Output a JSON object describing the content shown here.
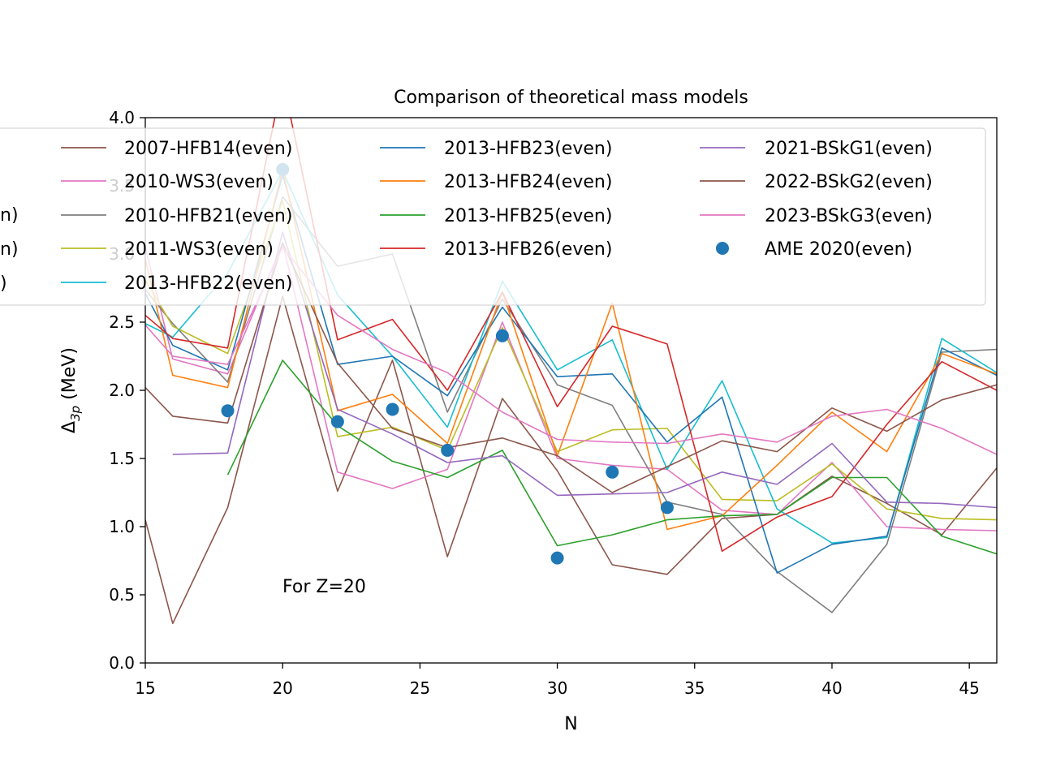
{
  "chart_data": {
    "type": "line",
    "title": "Comparison of theoretical mass models",
    "xlabel": "N",
    "ylabel_main": "Δ",
    "ylabel_sub": "3p",
    "ylabel_unit": " (MeV)",
    "annotation": "For Z=20",
    "xlim": [
      15,
      46
    ],
    "ylim": [
      0,
      4.0
    ],
    "xticks": [
      15,
      20,
      25,
      30,
      35,
      40,
      45
    ],
    "yticks": [
      "0.0",
      "0.5",
      "1.0",
      "1.5",
      "2.0",
      "2.5",
      "3.0",
      "3.5",
      "4.0"
    ],
    "grid": false,
    "legend_position": "top",
    "legend_cutoff_labels": [
      "n)",
      "n)",
      ")"
    ],
    "series": [
      {
        "name": "2007-HFB14(even)",
        "color": "#8c564b",
        "points": [
          [
            15,
            1.05
          ],
          [
            16,
            0.29
          ],
          [
            18,
            1.14
          ],
          [
            20,
            2.69
          ],
          [
            22,
            1.26
          ],
          [
            24,
            2.22
          ],
          [
            26,
            0.78
          ],
          [
            28,
            1.94
          ],
          [
            30,
            1.41
          ],
          [
            32,
            0.72
          ],
          [
            34,
            0.65
          ],
          [
            36,
            1.06
          ],
          [
            38,
            1.09
          ],
          [
            40,
            1.37
          ],
          [
            42,
            1.17
          ],
          [
            44,
            0.94
          ],
          [
            46,
            1.43
          ]
        ]
      },
      {
        "name": "2010-WS3(even)",
        "color": "#e377c2",
        "points": [
          [
            15,
            3.05
          ],
          [
            16,
            2.23
          ],
          [
            18,
            2.12
          ],
          [
            20,
            3.08
          ],
          [
            22,
            1.4
          ],
          [
            24,
            1.28
          ],
          [
            26,
            1.42
          ],
          [
            28,
            2.5
          ],
          [
            30,
            1.5
          ],
          [
            32,
            1.45
          ],
          [
            34,
            1.42
          ],
          [
            36,
            1.12
          ],
          [
            38,
            1.09
          ],
          [
            40,
            1.47
          ],
          [
            42,
            1.0
          ],
          [
            44,
            0.98
          ],
          [
            46,
            0.97
          ]
        ]
      },
      {
        "name": "2010-HFB21(even)",
        "color": "#7f7f7f",
        "points": [
          [
            15,
            2.74
          ],
          [
            16,
            2.49
          ],
          [
            18,
            2.06
          ],
          [
            20,
            3.42
          ],
          [
            22,
            2.91
          ],
          [
            24,
            3.0
          ],
          [
            26,
            1.84
          ],
          [
            28,
            2.67
          ],
          [
            30,
            2.04
          ],
          [
            32,
            1.89
          ],
          [
            34,
            1.18
          ],
          [
            36,
            1.09
          ],
          [
            38,
            0.67
          ],
          [
            40,
            0.37
          ],
          [
            42,
            0.87
          ],
          [
            44,
            2.28
          ],
          [
            46,
            2.3
          ]
        ]
      },
      {
        "name": "2011-WS3(even)",
        "color": "#bcbd22",
        "points": [
          [
            15,
            2.81
          ],
          [
            16,
            2.47
          ],
          [
            18,
            2.27
          ],
          [
            20,
            3.39
          ],
          [
            22,
            1.66
          ],
          [
            24,
            1.73
          ],
          [
            26,
            1.56
          ],
          [
            28,
            2.46
          ],
          [
            30,
            1.55
          ],
          [
            32,
            1.71
          ],
          [
            34,
            1.72
          ],
          [
            36,
            1.2
          ],
          [
            38,
            1.19
          ],
          [
            40,
            1.46
          ],
          [
            42,
            1.13
          ],
          [
            44,
            1.06
          ],
          [
            46,
            1.05
          ]
        ]
      },
      {
        "name": "2013-HFB22(even)",
        "color": "#17becf",
        "points": [
          [
            15,
            2.49
          ],
          [
            16,
            2.39
          ],
          [
            18,
            2.86
          ],
          [
            20,
            3.61
          ],
          [
            22,
            2.7
          ],
          [
            24,
            2.25
          ],
          [
            26,
            1.73
          ],
          [
            28,
            2.8
          ],
          [
            30,
            2.15
          ],
          [
            32,
            2.37
          ],
          [
            34,
            1.42
          ],
          [
            36,
            2.07
          ],
          [
            38,
            1.13
          ],
          [
            40,
            0.88
          ],
          [
            42,
            0.92
          ],
          [
            44,
            2.38
          ],
          [
            46,
            2.13
          ]
        ]
      },
      {
        "name": "2013-HFB23(even)",
        "color": "#1f77b4",
        "points": [
          [
            15,
            2.71
          ],
          [
            16,
            2.33
          ],
          [
            18,
            2.15
          ],
          [
            20,
            3.58
          ],
          [
            22,
            2.19
          ],
          [
            24,
            2.25
          ],
          [
            26,
            1.96
          ],
          [
            28,
            2.61
          ],
          [
            30,
            2.1
          ],
          [
            32,
            2.12
          ],
          [
            34,
            1.62
          ],
          [
            36,
            1.95
          ],
          [
            38,
            0.66
          ],
          [
            40,
            0.87
          ],
          [
            42,
            0.93
          ],
          [
            44,
            2.31
          ],
          [
            46,
            2.11
          ]
        ]
      },
      {
        "name": "2013-HFB24(even)",
        "color": "#ff7f0e",
        "points": [
          [
            15,
            2.96
          ],
          [
            16,
            2.11
          ],
          [
            18,
            2.02
          ],
          [
            20,
            3.62
          ],
          [
            22,
            1.85
          ],
          [
            24,
            1.97
          ],
          [
            26,
            1.61
          ],
          [
            28,
            2.72
          ],
          [
            30,
            1.52
          ],
          [
            32,
            2.64
          ],
          [
            34,
            0.98
          ],
          [
            36,
            1.08
          ],
          [
            38,
            1.45
          ],
          [
            40,
            1.84
          ],
          [
            42,
            1.55
          ],
          [
            44,
            2.27
          ],
          [
            46,
            2.12
          ]
        ]
      },
      {
        "name": "2013-HFB25(even)",
        "color": "#2ca02c",
        "points": [
          [
            18,
            1.38
          ],
          [
            20,
            2.22
          ],
          [
            22,
            1.74
          ],
          [
            24,
            1.48
          ],
          [
            26,
            1.36
          ],
          [
            28,
            1.56
          ],
          [
            30,
            0.86
          ],
          [
            32,
            0.94
          ],
          [
            34,
            1.05
          ],
          [
            36,
            1.08
          ],
          [
            38,
            1.09
          ],
          [
            40,
            1.36
          ],
          [
            42,
            1.36
          ],
          [
            44,
            0.93
          ],
          [
            46,
            0.8
          ]
        ]
      },
      {
        "name": "2013-HFB26(even)",
        "color": "#d62728",
        "points": [
          [
            15,
            2.55
          ],
          [
            16,
            2.38
          ],
          [
            18,
            2.31
          ],
          [
            20,
            4.28
          ],
          [
            22,
            2.37
          ],
          [
            24,
            2.52
          ],
          [
            26,
            2.0
          ],
          [
            28,
            2.72
          ],
          [
            30,
            1.88
          ],
          [
            32,
            2.47
          ],
          [
            34,
            2.34
          ],
          [
            36,
            0.82
          ],
          [
            38,
            1.07
          ],
          [
            40,
            1.22
          ],
          [
            42,
            1.75
          ],
          [
            44,
            2.21
          ],
          [
            46,
            2.0
          ]
        ]
      },
      {
        "name": "2021-BSkG1(even)",
        "color": "#9467bd",
        "points": [
          [
            16,
            1.53
          ],
          [
            18,
            1.54
          ],
          [
            20,
            3.16
          ],
          [
            22,
            1.86
          ],
          [
            24,
            1.68
          ],
          [
            26,
            1.47
          ],
          [
            28,
            1.52
          ],
          [
            30,
            1.23
          ],
          [
            32,
            1.24
          ],
          [
            34,
            1.25
          ],
          [
            36,
            1.4
          ],
          [
            38,
            1.31
          ],
          [
            40,
            1.61
          ],
          [
            42,
            1.18
          ],
          [
            44,
            1.17
          ],
          [
            46,
            1.14
          ]
        ]
      },
      {
        "name": "2022-BSkG2(even)",
        "color": "#8c564b",
        "points": [
          [
            15,
            2.02
          ],
          [
            16,
            1.81
          ],
          [
            18,
            1.76
          ],
          [
            20,
            3.08
          ],
          [
            22,
            2.2
          ],
          [
            24,
            1.72
          ],
          [
            26,
            1.58
          ],
          [
            28,
            1.65
          ],
          [
            30,
            1.52
          ],
          [
            32,
            1.25
          ],
          [
            34,
            1.44
          ],
          [
            36,
            1.63
          ],
          [
            38,
            1.55
          ],
          [
            40,
            1.87
          ],
          [
            42,
            1.7
          ],
          [
            44,
            1.93
          ],
          [
            46,
            2.04
          ]
        ]
      },
      {
        "name": "2023-BSkG3(even)",
        "color": "#e377c2",
        "points": [
          [
            15,
            2.48
          ],
          [
            16,
            2.25
          ],
          [
            18,
            2.19
          ],
          [
            20,
            3.05
          ],
          [
            22,
            2.55
          ],
          [
            24,
            2.3
          ],
          [
            26,
            2.13
          ],
          [
            28,
            1.84
          ],
          [
            30,
            1.64
          ],
          [
            32,
            1.62
          ],
          [
            34,
            1.61
          ],
          [
            36,
            1.68
          ],
          [
            38,
            1.62
          ],
          [
            40,
            1.81
          ],
          [
            42,
            1.86
          ],
          [
            44,
            1.72
          ],
          [
            46,
            1.53
          ]
        ]
      }
    ],
    "scatter": {
      "name": "AME 2020(even)",
      "color": "#1f77b4",
      "points": [
        [
          18,
          1.85
        ],
        [
          20,
          3.62
        ],
        [
          22,
          1.77
        ],
        [
          24,
          1.86
        ],
        [
          26,
          1.56
        ],
        [
          28,
          2.4
        ],
        [
          30,
          0.77
        ],
        [
          32,
          1.4
        ],
        [
          34,
          1.14
        ]
      ]
    }
  }
}
